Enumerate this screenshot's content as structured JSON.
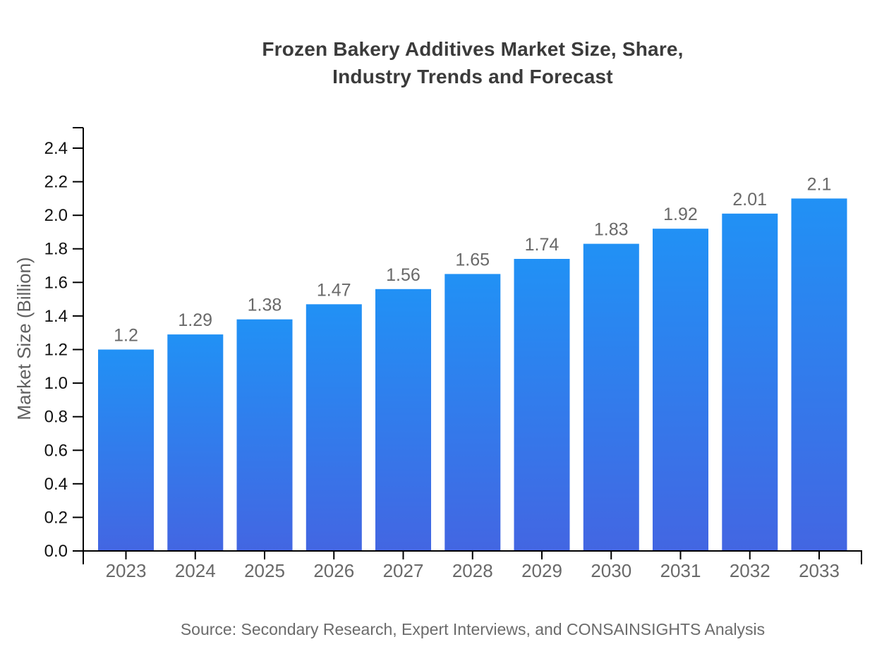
{
  "page": {
    "title_line1": "Frozen Bakery Additives Market Size, Share,",
    "title_line2": "Industry Trends and Forecast",
    "source_note": "Source: Secondary Research, Expert Interviews, and CONSAINSIGHTS Analysis"
  },
  "colors": {
    "background": "#ffffff",
    "bar_gradient_top": "#2191f5",
    "bar_gradient_bottom": "#4366e2",
    "axis": "#000000",
    "title_text": "#3b3b3b",
    "x_tick_label": "#696969",
    "y_tick_label": "#111111",
    "value_label": "#696969",
    "axis_title": "#5f5f5f",
    "source_text": "#6b6b6b"
  },
  "chart_data": {
    "type": "bar",
    "title": "Frozen Bakery Additives Market Size, Share, Industry Trends and Forecast",
    "categories": [
      "2023",
      "2024",
      "2025",
      "2026",
      "2027",
      "2028",
      "2029",
      "2030",
      "2031",
      "2032",
      "2033"
    ],
    "values": [
      1.2,
      1.29,
      1.38,
      1.47,
      1.56,
      1.65,
      1.74,
      1.83,
      1.92,
      2.01,
      2.1
    ],
    "value_labels": [
      "1.2",
      "1.29",
      "1.38",
      "1.47",
      "1.56",
      "1.65",
      "1.74",
      "1.83",
      "1.92",
      "2.01",
      "2.1"
    ],
    "xlabel": "",
    "ylabel": "Market Size (Billion)",
    "ylim": [
      0,
      2.4
    ],
    "ytick_step": 0.2,
    "ytick_labels": [
      "0.0",
      "0.2",
      "0.4",
      "0.6",
      "0.8",
      "1.0",
      "1.2",
      "1.4",
      "1.6",
      "1.8",
      "2.0",
      "2.2",
      "2.4"
    ],
    "grid": false,
    "legend": null,
    "bar_color": "blue gradient (top #2191f5 to bottom #4366e2)",
    "source": "Source: Secondary Research, Expert Interviews, and CONSAINSIGHTS Analysis"
  }
}
